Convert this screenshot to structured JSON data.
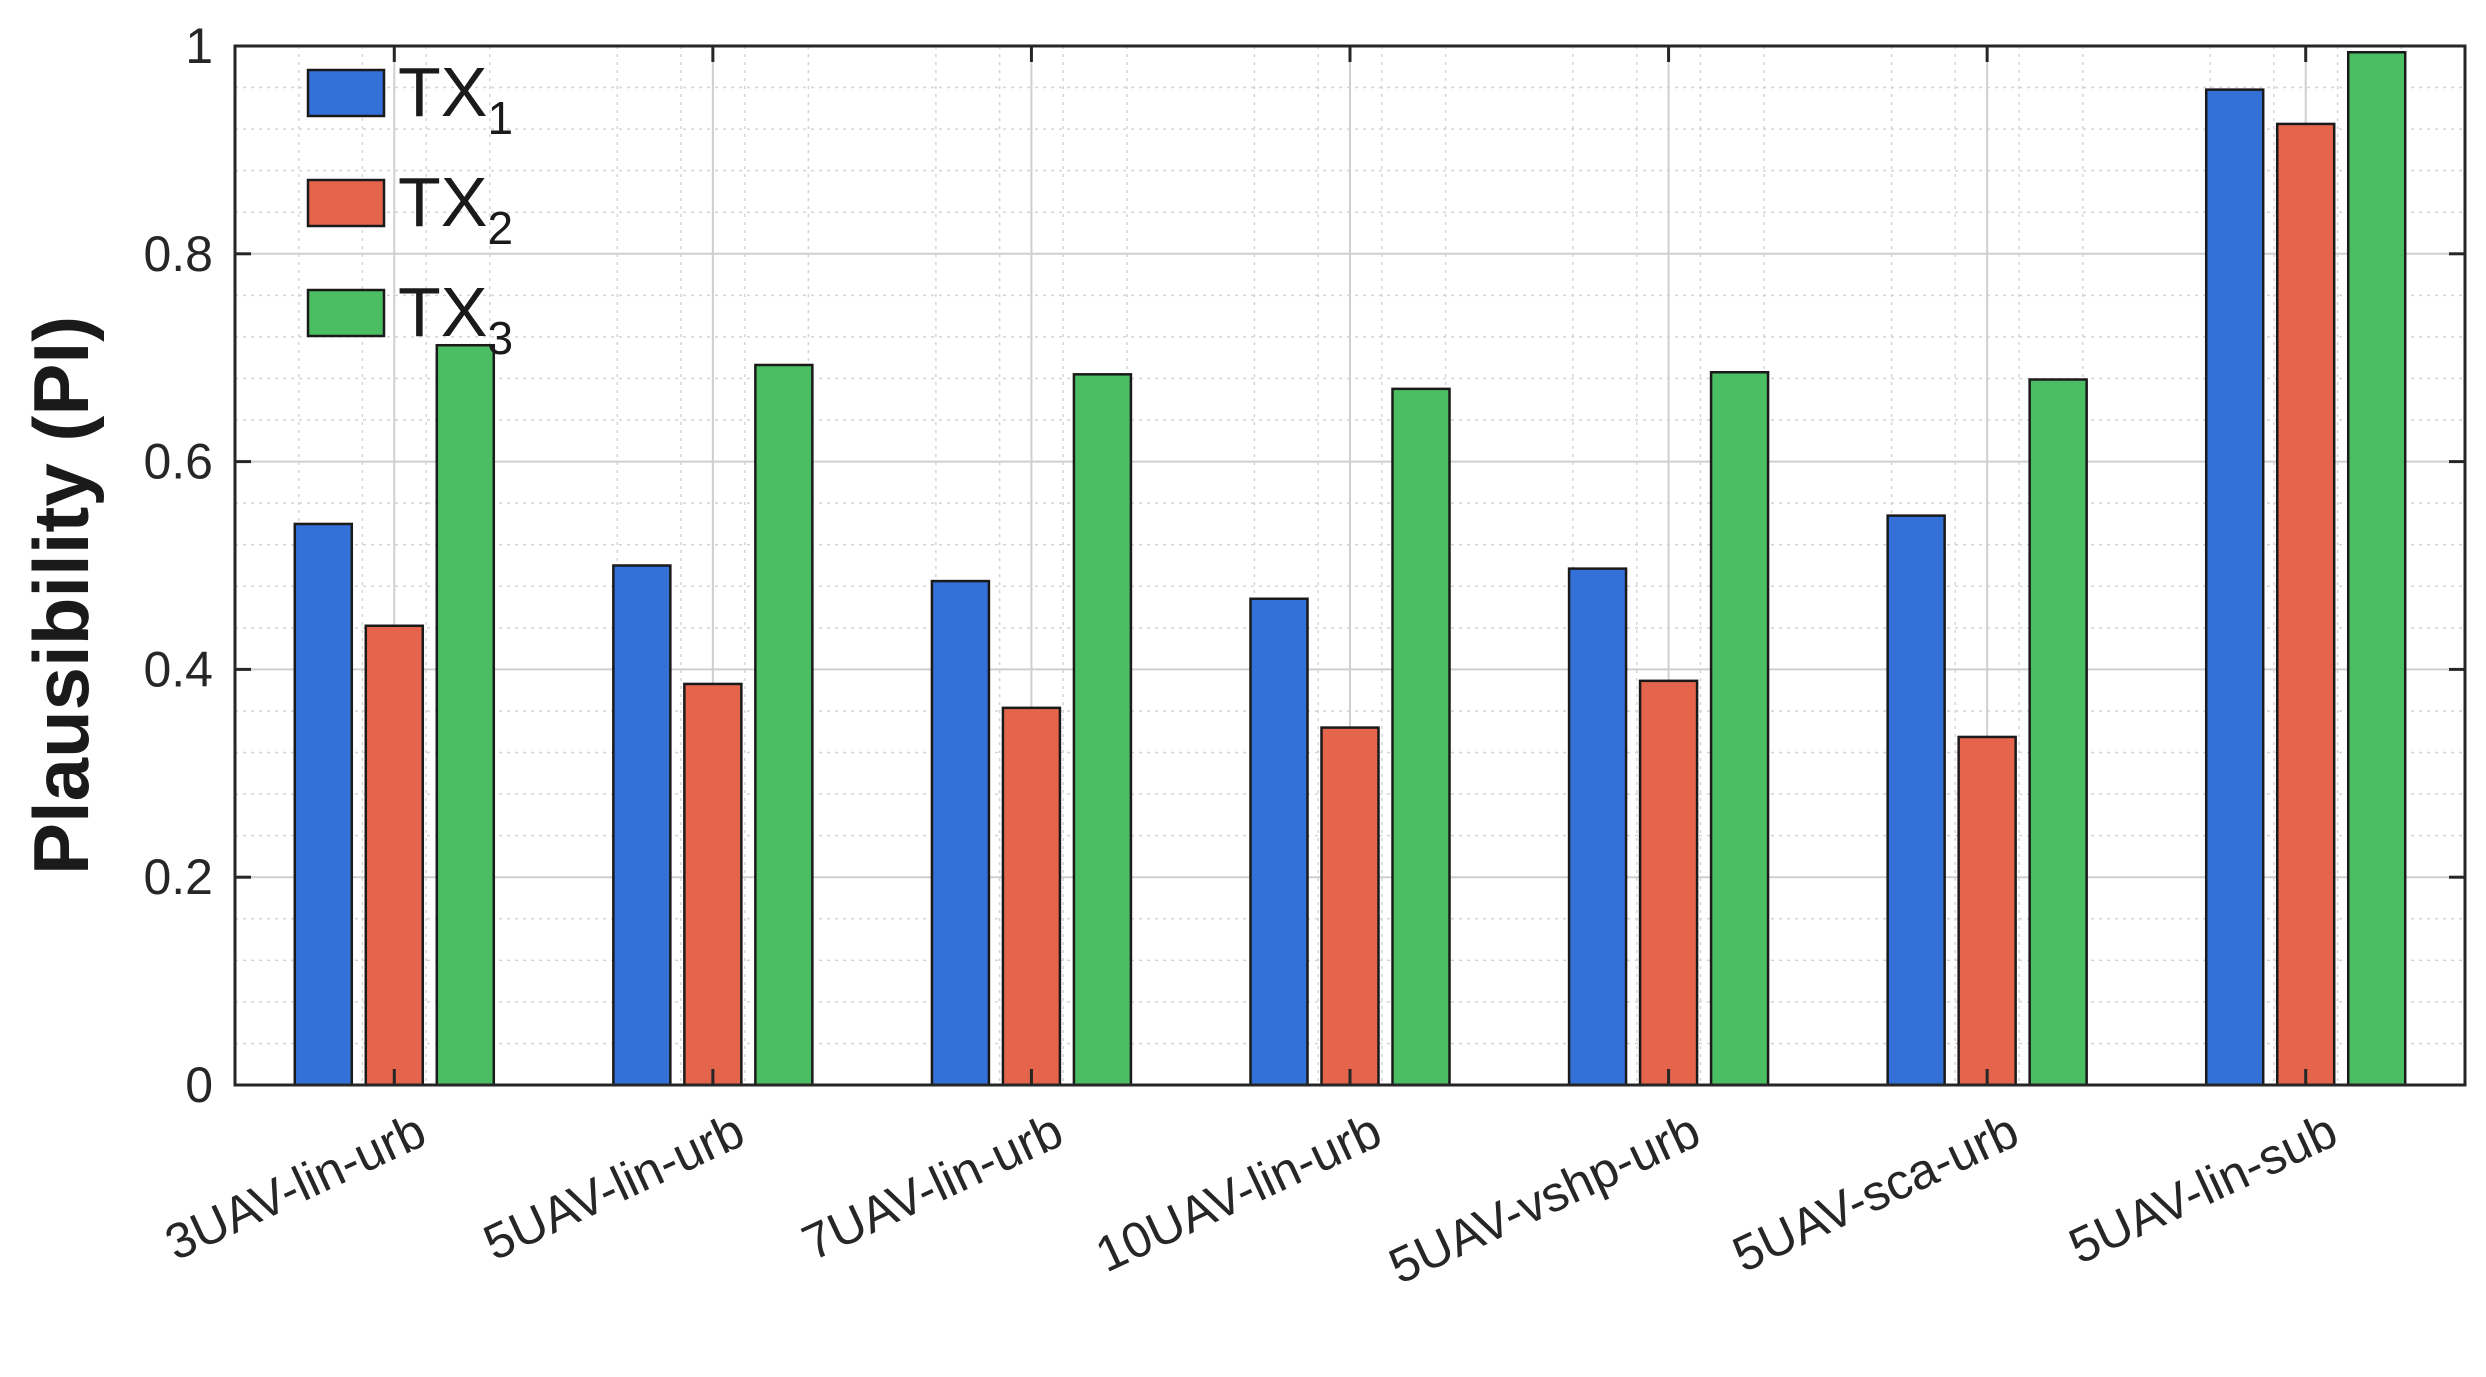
{
  "chart_data": {
    "type": "bar",
    "title": "",
    "xlabel": "",
    "ylabel": "Plausibility (PI)",
    "ylim": [
      0,
      1
    ],
    "yticks": [
      0,
      0.2,
      0.4,
      0.6,
      0.8,
      1
    ],
    "ytick_labels": [
      "0",
      "0.2",
      "0.4",
      "0.6",
      "0.8",
      "1"
    ],
    "categories": [
      "3UAV-lin-urb",
      "5UAV-lin-urb",
      "7UAV-lin-urb",
      "10UAV-lin-urb",
      "5UAV-vshp-urb",
      "5UAV-sca-urb",
      "5UAV-lin-sub"
    ],
    "series": [
      {
        "name": "TX1",
        "legend_base": "TX",
        "legend_sub": "1",
        "color": "#3370d8",
        "values": [
          0.54,
          0.5,
          0.485,
          0.468,
          0.497,
          0.548,
          0.958
        ]
      },
      {
        "name": "TX2",
        "legend_base": "TX",
        "legend_sub": "2",
        "color": "#e5654c",
        "values": [
          0.442,
          0.386,
          0.363,
          0.344,
          0.389,
          0.335,
          0.925
        ]
      },
      {
        "name": "TX3",
        "legend_base": "TX",
        "legend_sub": "3",
        "color": "#4bbe63",
        "values": [
          0.712,
          0.693,
          0.684,
          0.67,
          0.686,
          0.679,
          0.994
        ]
      }
    ],
    "grid": true,
    "minor_grid": true,
    "legend_position": "top-left"
  }
}
